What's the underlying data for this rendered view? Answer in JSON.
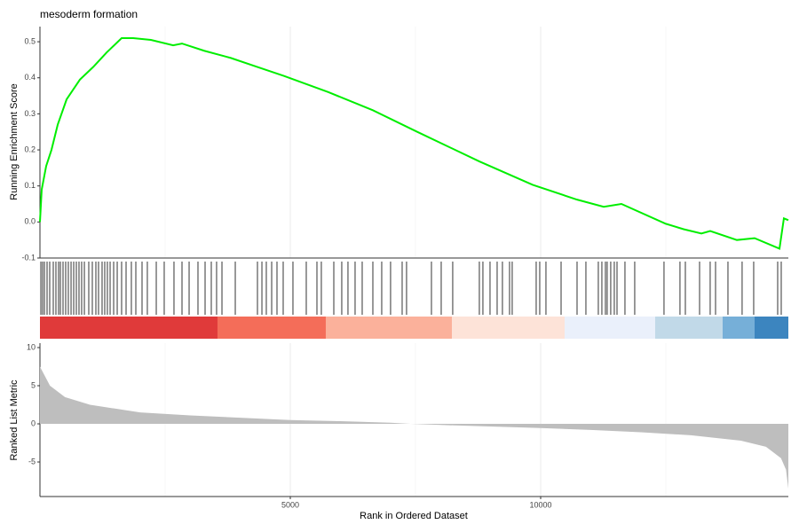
{
  "chart_data": {
    "type": "gsea",
    "title": "mesoderm formation",
    "xlabel": "Rank in Ordered Dataset",
    "xlim": [
      0,
      14947
    ],
    "xticks": [
      5000,
      10000
    ],
    "x_minor_ticks": [
      2500,
      7500,
      12500
    ],
    "grid": true,
    "es": {
      "ylabel": "Running Enrichment Score",
      "color": "#00ee00",
      "ylim": [
        -0.1,
        0.542
      ],
      "yticks": [
        -0.1,
        {
          "value": 0,
          "label": "0.0"
        },
        0.1,
        0.2,
        0.3,
        0.4,
        0.5
      ],
      "x": [
        0,
        35,
        124,
        230,
        355,
        532,
        798,
        1064,
        1330,
        1631,
        1862,
        2216,
        2660,
        2837,
        3280,
        3812,
        4344,
        4876,
        5762,
        6648,
        7535,
        8776,
        9840,
        10727,
        11259,
        11613,
        12500,
        12855,
        13210,
        13387,
        13919,
        14273,
        14770,
        14858,
        14947
      ],
      "values": [
        0,
        0.09,
        0.155,
        0.2,
        0.27,
        0.34,
        0.395,
        0.43,
        0.47,
        0.51,
        0.51,
        0.505,
        0.49,
        0.495,
        0.475,
        0.455,
        0.43,
        0.405,
        0.36,
        0.31,
        0.25,
        0.168,
        0.103,
        0.062,
        0.042,
        0.05,
        -0.005,
        -0.02,
        -0.032,
        -0.025,
        -0.05,
        -0.045,
        -0.074,
        0.01,
        0.005
      ]
    },
    "hits": [
      18,
      53,
      89,
      142,
      195,
      266,
      319,
      372,
      408,
      461,
      514,
      567,
      621,
      674,
      727,
      780,
      833,
      887,
      975,
      1046,
      1117,
      1170,
      1241,
      1294,
      1347,
      1401,
      1472,
      1543,
      1631,
      1720,
      1826,
      1915,
      2039,
      2145,
      2323,
      2482,
      2677,
      2837,
      2979,
      3156,
      3298,
      3422,
      3528,
      3635,
      3901,
      4344,
      4433,
      4521,
      4628,
      4734,
      4858,
      5053,
      5319,
      5532,
      5620,
      5869,
      6028,
      6152,
      6294,
      6436,
      6649,
      6826,
      7003,
      7234,
      7322,
      7819,
      8014,
      8244,
      8776,
      8847,
      8989,
      9131,
      9237,
      9379,
      9432,
      9911,
      9982,
      10106,
      10408,
      10727,
      10904,
      11152,
      11223,
      11294,
      11329,
      11400,
      11471,
      11525,
      11684,
      11879,
      12464,
      12783,
      12890,
      13174,
      13386,
      13493,
      13741,
      14024,
      14255,
      14734,
      14805
    ],
    "bands": [
      {
        "start": 0,
        "end": 3546,
        "color": "#e03a3a"
      },
      {
        "start": 3546,
        "end": 5709,
        "color": "#f46d59"
      },
      {
        "start": 5709,
        "end": 8227,
        "color": "#fbb19b"
      },
      {
        "start": 8227,
        "end": 10479,
        "color": "#fde3d8"
      },
      {
        "start": 10479,
        "end": 12287,
        "color": "#eaf0fb"
      },
      {
        "start": 12287,
        "end": 13635,
        "color": "#c1d9e8"
      },
      {
        "start": 13635,
        "end": 14273,
        "color": "#76afd8"
      },
      {
        "start": 14273,
        "end": 14947,
        "color": "#3c85bf"
      }
    ],
    "metric": {
      "ylabel": "Ranked List Metric",
      "color": "#bebebe",
      "ylim": [
        -9.53,
        10.58
      ],
      "yticks": [
        -5,
        0,
        5,
        10
      ],
      "x": [
        0,
        200,
        500,
        1000,
        2000,
        3000,
        4000,
        5000,
        6000,
        7000,
        7400,
        8000,
        9000,
        10000,
        11000,
        12000,
        13000,
        14000,
        14500,
        14800,
        14900,
        14947
      ],
      "values": [
        7.5,
        5,
        3.5,
        2.5,
        1.5,
        1.1,
        0.8,
        0.5,
        0.35,
        0.15,
        0,
        -0.15,
        -0.35,
        -0.55,
        -0.8,
        -1.1,
        -1.5,
        -2.2,
        -3,
        -4.5,
        -6,
        -8.5
      ]
    }
  }
}
